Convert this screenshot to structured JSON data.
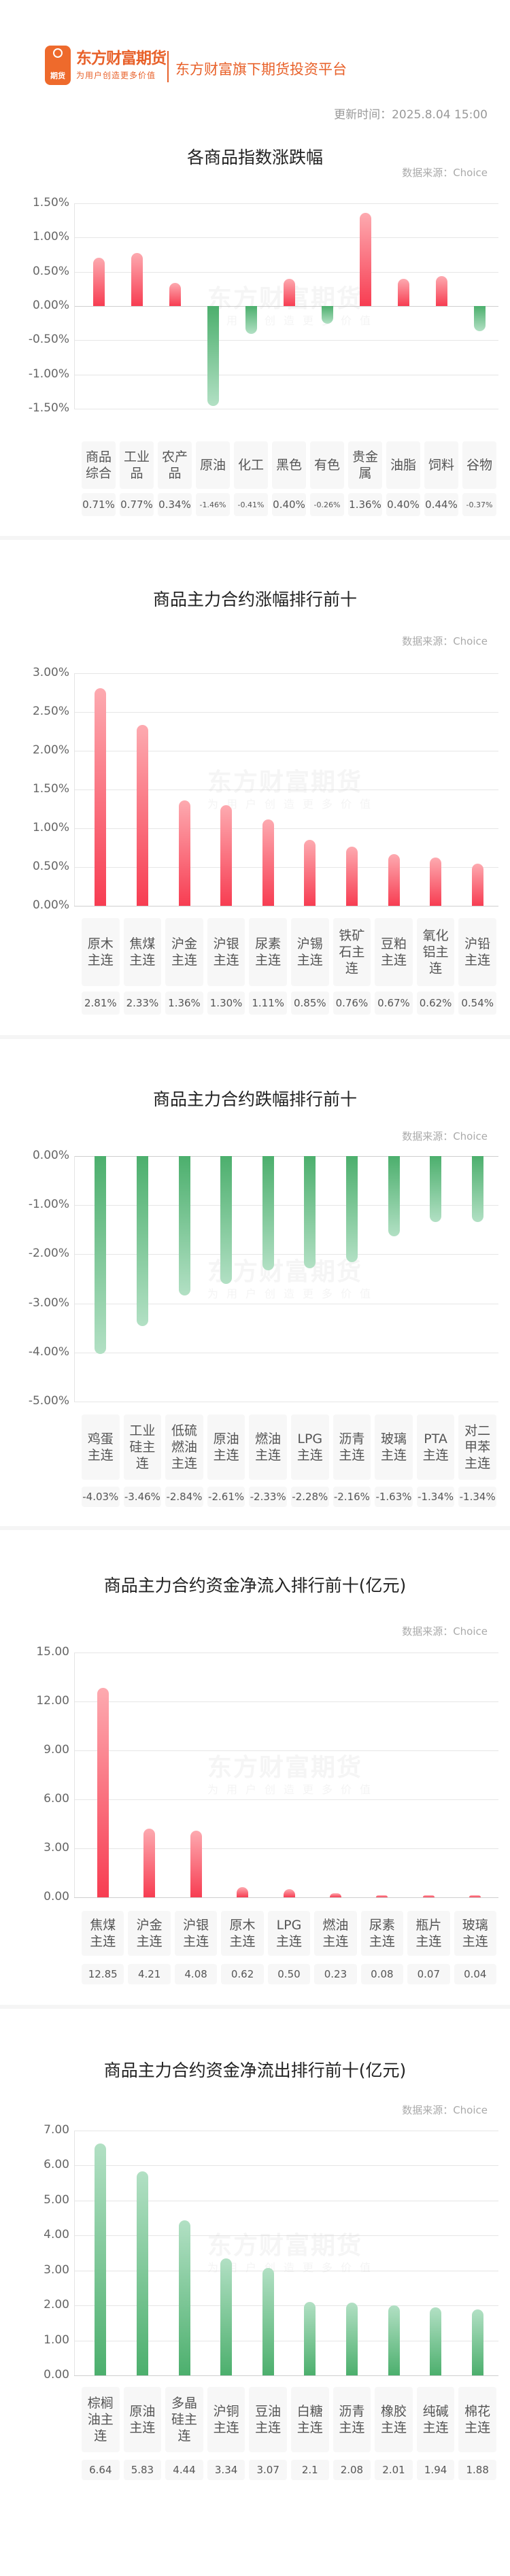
{
  "header": {
    "logo_badge": "期货",
    "brand_name": "东方财富期货",
    "brand_slogan": "为用户创造更多价值",
    "brand_tagline": "东方财富旗下期货投资平台",
    "update_time": "更新时间：2025.8.04 15:00"
  },
  "watermark": {
    "main": "东方财富期货",
    "sub": "为用户创造更多价值"
  },
  "source_label": "数据来源：Choice",
  "chart_data": [
    {
      "id": "index-change",
      "type": "bar",
      "title": "各商品指数涨跌幅",
      "categories": [
        "商品综合",
        "工业品",
        "农产品",
        "原油",
        "化工",
        "黑色",
        "有色",
        "贵金属",
        "油脂",
        "饲料",
        "谷物"
      ],
      "category_lines": [
        [
          "商品",
          "综合"
        ],
        [
          "工业",
          "品"
        ],
        [
          "农产",
          "品"
        ],
        [
          "原油"
        ],
        [
          "化工"
        ],
        [
          "黑色"
        ],
        [
          "有色"
        ],
        [
          "贵金",
          "属"
        ],
        [
          "油脂"
        ],
        [
          "饲料"
        ],
        [
          "谷物"
        ]
      ],
      "values": [
        0.71,
        0.77,
        0.34,
        -1.46,
        -0.41,
        0.4,
        -0.26,
        1.36,
        0.4,
        0.44,
        -0.37
      ],
      "value_labels": [
        "0.71%",
        "0.77%",
        "0.34%",
        "-1.46%",
        "-0.41%",
        "0.40%",
        "-0.26%",
        "1.36%",
        "0.40%",
        "0.44%",
        "-0.37%"
      ],
      "yticks": [
        "1.50%",
        "1.00%",
        "0.50%",
        "0.00%",
        "-0.50%",
        "-1.00%",
        "-1.50%"
      ],
      "ylim": [
        -1.5,
        1.5
      ],
      "ylabel": "",
      "xlabel": "",
      "grid": true,
      "colors": {
        "positive": "#f73d52",
        "negative": "#4caf6d"
      }
    },
    {
      "id": "top-gainers",
      "type": "bar",
      "title": "商品主力合约涨幅排行前十",
      "categories": [
        "原木主连",
        "焦煤主连",
        "沪金主连",
        "沪银主连",
        "尿素主连",
        "沪锡主连",
        "铁矿石主连",
        "豆粕主连",
        "氧化铝主连",
        "沪铅主连"
      ],
      "category_lines": [
        [
          "原木",
          "主连"
        ],
        [
          "焦煤",
          "主连"
        ],
        [
          "沪金",
          "主连"
        ],
        [
          "沪银",
          "主连"
        ],
        [
          "尿素",
          "主连"
        ],
        [
          "沪锡",
          "主连"
        ],
        [
          "铁矿",
          "石主",
          "连"
        ],
        [
          "豆粕",
          "主连"
        ],
        [
          "氧化",
          "铝主",
          "连"
        ],
        [
          "沪铅",
          "主连"
        ]
      ],
      "values": [
        2.81,
        2.33,
        1.36,
        1.3,
        1.11,
        0.85,
        0.76,
        0.67,
        0.62,
        0.54
      ],
      "value_labels": [
        "2.81%",
        "2.33%",
        "1.36%",
        "1.30%",
        "1.11%",
        "0.85%",
        "0.76%",
        "0.67%",
        "0.62%",
        "0.54%"
      ],
      "yticks": [
        "3.00%",
        "2.50%",
        "2.00%",
        "1.50%",
        "1.00%",
        "0.50%",
        "0.00%"
      ],
      "ylim": [
        0,
        3.0
      ],
      "grid": true,
      "colors": {
        "bar": "#f73d52"
      }
    },
    {
      "id": "top-losers",
      "type": "bar",
      "title": "商品主力合约跌幅排行前十",
      "categories": [
        "鸡蛋主连",
        "工业硅主连",
        "低硫燃油主连",
        "原油主连",
        "燃油主连",
        "LPG主连",
        "沥青主连",
        "玻璃主连",
        "PTA主连",
        "对二甲苯主连"
      ],
      "category_lines": [
        [
          "鸡蛋",
          "主连"
        ],
        [
          "工业",
          "硅主",
          "连"
        ],
        [
          "低硫",
          "燃油",
          "主连"
        ],
        [
          "原油",
          "主连"
        ],
        [
          "燃油",
          "主连"
        ],
        [
          "LPG",
          "主连"
        ],
        [
          "沥青",
          "主连"
        ],
        [
          "玻璃",
          "主连"
        ],
        [
          "PTA",
          "主连"
        ],
        [
          "对二",
          "甲苯",
          "主连"
        ]
      ],
      "values": [
        -4.03,
        -3.46,
        -2.84,
        -2.61,
        -2.33,
        -2.28,
        -2.16,
        -1.63,
        -1.34,
        -1.34
      ],
      "value_labels": [
        "-4.03%",
        "-3.46%",
        "-2.84%",
        "-2.61%",
        "-2.33%",
        "-2.28%",
        "-2.16%",
        "-1.63%",
        "-1.34%",
        "-1.34%"
      ],
      "yticks": [
        "0.00%",
        "-1.00%",
        "-2.00%",
        "-3.00%",
        "-4.00%",
        "-5.00%"
      ],
      "ylim": [
        -5.0,
        0
      ],
      "grid": true,
      "colors": {
        "bar": "#4caf6d"
      }
    },
    {
      "id": "net-inflow",
      "type": "bar",
      "title": "商品主力合约资金净流入排行前十(亿元)",
      "categories": [
        "焦煤主连",
        "沪金主连",
        "沪银主连",
        "原木主连",
        "LPG主连",
        "燃油主连",
        "尿素主连",
        "瓶片主连",
        "玻璃主连"
      ],
      "category_lines": [
        [
          "焦煤",
          "主连"
        ],
        [
          "沪金",
          "主连"
        ],
        [
          "沪银",
          "主连"
        ],
        [
          "原木",
          "主连"
        ],
        [
          "LPG",
          "主连"
        ],
        [
          "燃油",
          "主连"
        ],
        [
          "尿素",
          "主连"
        ],
        [
          "瓶片",
          "主连"
        ],
        [
          "玻璃",
          "主连"
        ]
      ],
      "values": [
        12.85,
        4.21,
        4.08,
        0.62,
        0.5,
        0.23,
        0.08,
        0.07,
        0.04
      ],
      "value_labels": [
        "12.85",
        "4.21",
        "4.08",
        "0.62",
        "0.50",
        "0.23",
        "0.08",
        "0.07",
        "0.04"
      ],
      "yticks": [
        "15.00",
        "12.00",
        "9.00",
        "6.00",
        "3.00",
        "0.00"
      ],
      "ylim": [
        0,
        15.0
      ],
      "ylabel": "亿元",
      "grid": true,
      "colors": {
        "bar": "#f73d52"
      }
    },
    {
      "id": "net-outflow",
      "type": "bar",
      "title": "商品主力合约资金净流出排行前十(亿元)",
      "categories": [
        "棕榈油主连",
        "原油主连",
        "多晶硅主连",
        "沪铜主连",
        "豆油主连",
        "白糖主连",
        "沥青主连",
        "橡胶主连",
        "纯碱主连",
        "棉花主连"
      ],
      "category_lines": [
        [
          "棕榈",
          "油主",
          "连"
        ],
        [
          "原油",
          "主连"
        ],
        [
          "多晶",
          "硅主",
          "连"
        ],
        [
          "沪铜",
          "主连"
        ],
        [
          "豆油",
          "主连"
        ],
        [
          "白糖",
          "主连"
        ],
        [
          "沥青",
          "主连"
        ],
        [
          "橡胶",
          "主连"
        ],
        [
          "纯碱",
          "主连"
        ],
        [
          "棉花",
          "主连"
        ]
      ],
      "values": [
        6.64,
        5.83,
        4.44,
        3.34,
        3.07,
        2.1,
        2.08,
        2.01,
        1.94,
        1.88
      ],
      "value_labels": [
        "6.64",
        "5.83",
        "4.44",
        "3.34",
        "3.07",
        "2.1",
        "2.08",
        "2.01",
        "1.94",
        "1.88"
      ],
      "yticks": [
        "7.00",
        "6.00",
        "5.00",
        "4.00",
        "3.00",
        "2.00",
        "1.00",
        "0.00"
      ],
      "ylim": [
        0,
        7.0
      ],
      "ylabel": "亿元",
      "grid": true,
      "colors": {
        "bar": "#4caf6d"
      }
    }
  ]
}
